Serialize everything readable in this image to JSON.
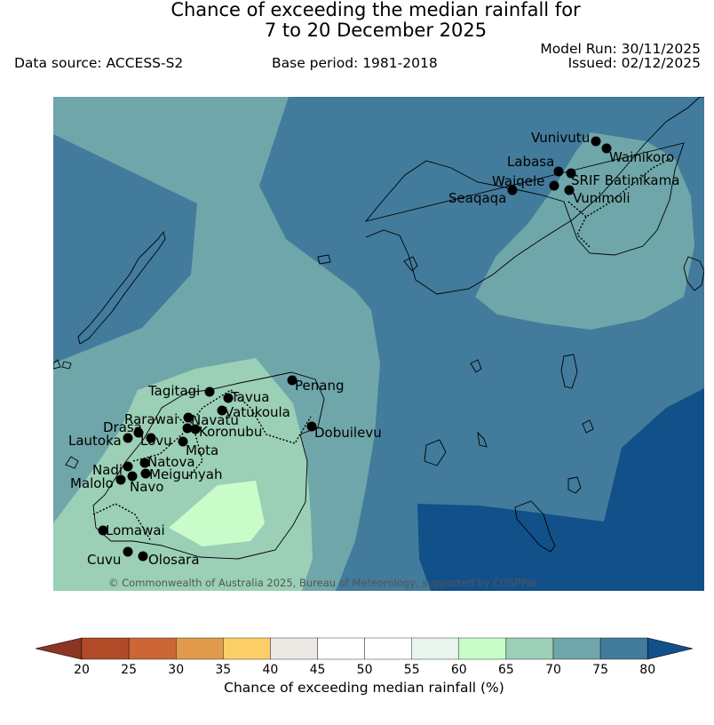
{
  "title_line1": "Chance of exceeding the median rainfall for",
  "title_line2": "7 to 20 December 2025",
  "model_run": "Model Run: 30/11/2025",
  "issued": "Issued: 02/12/2025",
  "data_source": "Data source: ACCESS-S2",
  "base_period": "Base period: 1981-2018",
  "copyright": "© Commonwealth of Australia 2025, Bureau of Meteorology, supported by COSPPac",
  "colorbar": {
    "label": "Chance of exceeding median rainfall (%)",
    "ticks": [
      "20",
      "25",
      "30",
      "35",
      "40",
      "45",
      "50",
      "55",
      "60",
      "65",
      "70",
      "75",
      "80"
    ],
    "colors": [
      "#b04a27",
      "#cc6634",
      "#e19a4c",
      "#fdcf68",
      "#ece8e4",
      "#ffffff",
      "#ffffff",
      "#e9f5ec",
      "#c9fcc9",
      "#9bcfb6",
      "#6fa6a9",
      "#427b9b"
    ],
    "under_color": "#8b3522",
    "over_color": "#12508a"
  },
  "map_colors": {
    "band_70_75": "#6fa6a9",
    "band_75_80": "#427b9b",
    "band_above_80": "#12508a",
    "band_65_70": "#9bcfb6",
    "band_60_65": "#c9fcc9"
  },
  "stations": [
    {
      "name": "Vunivutu"
    },
    {
      "name": "Wainikoro"
    },
    {
      "name": "Labasa"
    },
    {
      "name": "SRIF Batinikama"
    },
    {
      "name": "Waiqele"
    },
    {
      "name": "Seaqaqa"
    },
    {
      "name": "Vunimoli"
    },
    {
      "name": "Penang"
    },
    {
      "name": "Tagitagi"
    },
    {
      "name": "Tavua"
    },
    {
      "name": "Vatukoula"
    },
    {
      "name": "Rarawai"
    },
    {
      "name": "Navatu"
    },
    {
      "name": "Drasa"
    },
    {
      "name": "Koronubu"
    },
    {
      "name": "Dobuilevu"
    },
    {
      "name": "Lautoka"
    },
    {
      "name": "Lovu"
    },
    {
      "name": "Mota"
    },
    {
      "name": "Natova"
    },
    {
      "name": "Nadi"
    },
    {
      "name": "Meigunyah"
    },
    {
      "name": "Malolo"
    },
    {
      "name": "Navo"
    },
    {
      "name": "Lomawai"
    },
    {
      "name": "Cuvu"
    },
    {
      "name": "Olosara"
    }
  ]
}
